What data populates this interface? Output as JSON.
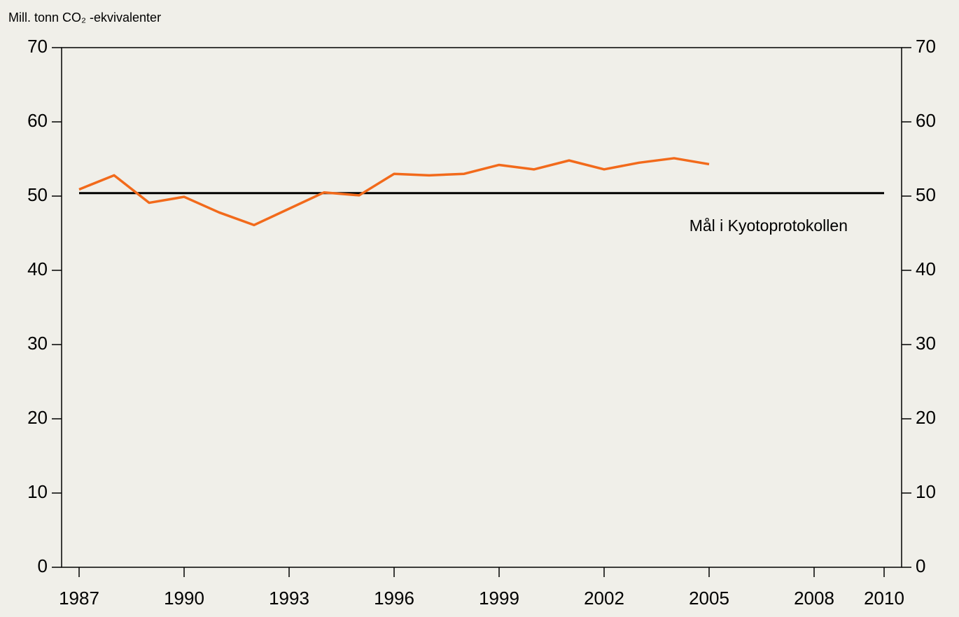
{
  "chart_data": {
    "type": "line",
    "y_label": "Mill. tonn CO₂ -ekvivalenter",
    "x": [
      1987,
      1988,
      1989,
      1990,
      1991,
      1992,
      1993,
      1994,
      1995,
      1996,
      1997,
      1998,
      1999,
      2000,
      2001,
      2002,
      2003,
      2004,
      2005
    ],
    "values": [
      50.9,
      52.8,
      49.1,
      49.9,
      47.8,
      46.1,
      48.3,
      50.5,
      50.1,
      53.0,
      52.8,
      53.0,
      54.2,
      53.6,
      54.8,
      53.6,
      54.5,
      55.1,
      54.3
    ],
    "color": "#f26a1b",
    "reference_line": {
      "label": "Mål i Kyotoprotokollen",
      "value": 50.4,
      "x": [
        1987,
        2010
      ],
      "color": "#000000"
    },
    "xlim": [
      1986.5,
      2010.5
    ],
    "xticks": [
      1987,
      1990,
      1993,
      1996,
      1999,
      2002,
      2005,
      2008,
      2010
    ],
    "ylim": [
      0,
      70
    ],
    "yticks": [
      0,
      10,
      20,
      30,
      40,
      50,
      60,
      70
    ],
    "right_axis_mirror": true,
    "grid": false
  }
}
